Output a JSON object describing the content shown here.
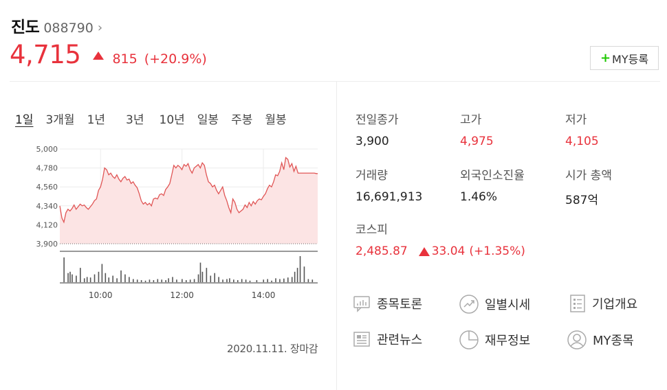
{
  "stock": {
    "name": "진도",
    "code": "088790",
    "price": "4,715",
    "change": "815",
    "change_pct": "(+20.9%)",
    "my_button": "MY등록"
  },
  "period_tabs": [
    "1일",
    "3개월",
    "1년",
    "3년",
    "10년",
    "일봉",
    "주봉",
    "월봉"
  ],
  "chart_date": "2020.11.11. 장마감",
  "info": {
    "prev_close": {
      "label": "전일종가",
      "value": "3,900"
    },
    "high": {
      "label": "고가",
      "value": "4,975"
    },
    "low": {
      "label": "저가",
      "value": "4,105"
    },
    "volume": {
      "label": "거래량",
      "value": "16,691,913"
    },
    "foreign_ratio": {
      "label": "외국인소진율",
      "value": "1.46%"
    },
    "market_cap": {
      "label": "시가 총액",
      "value": "587억"
    },
    "kospi": {
      "label": "코스피",
      "value": "2,485.87",
      "change": "33.04",
      "change_pct": "(+1.35%)"
    }
  },
  "links": [
    {
      "label": "종목토론",
      "icon": "chat-icon"
    },
    {
      "label": "일별시세",
      "icon": "trend-icon"
    },
    {
      "label": "기업개요",
      "icon": "list-icon"
    },
    {
      "label": "관련뉴스",
      "icon": "news-icon"
    },
    {
      "label": "재무정보",
      "icon": "pie-icon"
    },
    {
      "label": "MY종목",
      "icon": "person-icon"
    }
  ],
  "colors": {
    "up": "#e8323c",
    "line": "#e05555",
    "fill": "#fce4e4"
  },
  "chart_data": {
    "type": "area",
    "title": "",
    "xlabel": "",
    "ylabel": "",
    "ylim": [
      3900,
      5000
    ],
    "y_ticks": [
      "5,000",
      "4,780",
      "4,560",
      "4,340",
      "4,120",
      "3,900"
    ],
    "x_ticks": [
      {
        "label": "10:00",
        "x": 60
      },
      {
        "label": "12:00",
        "x": 180
      },
      {
        "label": "14:00",
        "x": 300
      }
    ],
    "baseline": 3900,
    "x_range": [
      0,
      380
    ],
    "x": [
      0,
      3,
      6,
      9,
      12,
      15,
      18,
      21,
      24,
      27,
      30,
      33,
      36,
      39,
      42,
      45,
      48,
      51,
      54,
      57,
      60,
      63,
      66,
      69,
      72,
      75,
      78,
      81,
      84,
      87,
      90,
      93,
      96,
      99,
      102,
      105,
      108,
      111,
      114,
      117,
      120,
      123,
      126,
      129,
      132,
      135,
      138,
      141,
      144,
      147,
      150,
      153,
      156,
      159,
      162,
      165,
      168,
      171,
      174,
      177,
      180,
      183,
      186,
      189,
      192,
      195,
      198,
      201,
      204,
      207,
      210,
      213,
      216,
      219,
      222,
      225,
      228,
      231,
      234,
      237,
      240,
      243,
      246,
      249,
      252,
      255,
      258,
      261,
      264,
      267,
      270,
      273,
      276,
      279,
      282,
      285,
      288,
      291,
      294,
      297,
      300,
      303,
      306,
      309,
      312,
      315,
      318,
      321,
      324,
      327,
      330,
      333,
      336,
      339,
      342,
      345,
      348,
      351,
      354,
      357,
      360,
      363,
      366,
      369,
      372,
      375,
      378,
      380
    ],
    "values": [
      4340,
      4200,
      4150,
      4260,
      4300,
      4280,
      4310,
      4350,
      4300,
      4330,
      4360,
      4340,
      4350,
      4320,
      4300,
      4330,
      4360,
      4400,
      4420,
      4520,
      4560,
      4650,
      4780,
      4760,
      4700,
      4720,
      4680,
      4660,
      4700,
      4650,
      4620,
      4660,
      4680,
      4640,
      4650,
      4600,
      4620,
      4580,
      4550,
      4480,
      4400,
      4360,
      4380,
      4350,
      4370,
      4340,
      4420,
      4430,
      4420,
      4470,
      4480,
      4460,
      4530,
      4560,
      4600,
      4700,
      4810,
      4780,
      4810,
      4790,
      4760,
      4820,
      4800,
      4830,
      4760,
      4720,
      4780,
      4800,
      4820,
      4780,
      4840,
      4810,
      4700,
      4620,
      4600,
      4560,
      4580,
      4520,
      4480,
      4520,
      4560,
      4460,
      4400,
      4320,
      4260,
      4420,
      4380,
      4300,
      4260,
      4280,
      4300,
      4350,
      4320,
      4380,
      4340,
      4390,
      4360,
      4400,
      4420,
      4410,
      4450,
      4480,
      4540,
      4580,
      4560,
      4620,
      4700,
      4690,
      4740,
      4840,
      4760,
      4900,
      4880,
      4790,
      4830,
      4740,
      4800,
      4720,
      4720,
      4720,
      4720,
      4720,
      4720,
      4720,
      4720,
      4720,
      4715,
      4715
    ],
    "volume_bars": [
      {
        "x": 6,
        "v": 95
      },
      {
        "x": 12,
        "v": 35
      },
      {
        "x": 15,
        "v": 40
      },
      {
        "x": 18,
        "v": 30
      },
      {
        "x": 24,
        "v": 25
      },
      {
        "x": 30,
        "v": 55
      },
      {
        "x": 36,
        "v": 15
      },
      {
        "x": 40,
        "v": 20
      },
      {
        "x": 45,
        "v": 18
      },
      {
        "x": 51,
        "v": 30
      },
      {
        "x": 57,
        "v": 40
      },
      {
        "x": 62,
        "v": 70
      },
      {
        "x": 67,
        "v": 35
      },
      {
        "x": 72,
        "v": 18
      },
      {
        "x": 78,
        "v": 25
      },
      {
        "x": 84,
        "v": 15
      },
      {
        "x": 90,
        "v": 45
      },
      {
        "x": 96,
        "v": 30
      },
      {
        "x": 102,
        "v": 20
      },
      {
        "x": 108,
        "v": 12
      },
      {
        "x": 114,
        "v": 10
      },
      {
        "x": 120,
        "v": 8
      },
      {
        "x": 126,
        "v": 6
      },
      {
        "x": 132,
        "v": 10
      },
      {
        "x": 138,
        "v": 8
      },
      {
        "x": 144,
        "v": 12
      },
      {
        "x": 150,
        "v": 10
      },
      {
        "x": 156,
        "v": 8
      },
      {
        "x": 160,
        "v": 15
      },
      {
        "x": 166,
        "v": 20
      },
      {
        "x": 172,
        "v": 10
      },
      {
        "x": 180,
        "v": 12
      },
      {
        "x": 186,
        "v": 8
      },
      {
        "x": 192,
        "v": 10
      },
      {
        "x": 198,
        "v": 12
      },
      {
        "x": 204,
        "v": 30
      },
      {
        "x": 207,
        "v": 75
      },
      {
        "x": 210,
        "v": 40
      },
      {
        "x": 216,
        "v": 55
      },
      {
        "x": 222,
        "v": 25
      },
      {
        "x": 228,
        "v": 35
      },
      {
        "x": 234,
        "v": 20
      },
      {
        "x": 240,
        "v": 10
      },
      {
        "x": 246,
        "v": 12
      },
      {
        "x": 250,
        "v": 15
      },
      {
        "x": 256,
        "v": 10
      },
      {
        "x": 262,
        "v": 8
      },
      {
        "x": 268,
        "v": 12
      },
      {
        "x": 274,
        "v": 10
      },
      {
        "x": 280,
        "v": 6
      },
      {
        "x": 290,
        "v": 8
      },
      {
        "x": 300,
        "v": 10
      },
      {
        "x": 306,
        "v": 12
      },
      {
        "x": 312,
        "v": 6
      },
      {
        "x": 318,
        "v": 15
      },
      {
        "x": 324,
        "v": 12
      },
      {
        "x": 330,
        "v": 14
      },
      {
        "x": 336,
        "v": 18
      },
      {
        "x": 342,
        "v": 20
      },
      {
        "x": 346,
        "v": 40
      },
      {
        "x": 350,
        "v": 55
      },
      {
        "x": 354,
        "v": 100
      },
      {
        "x": 360,
        "v": 60
      },
      {
        "x": 366,
        "v": 12
      },
      {
        "x": 372,
        "v": 10
      }
    ]
  }
}
